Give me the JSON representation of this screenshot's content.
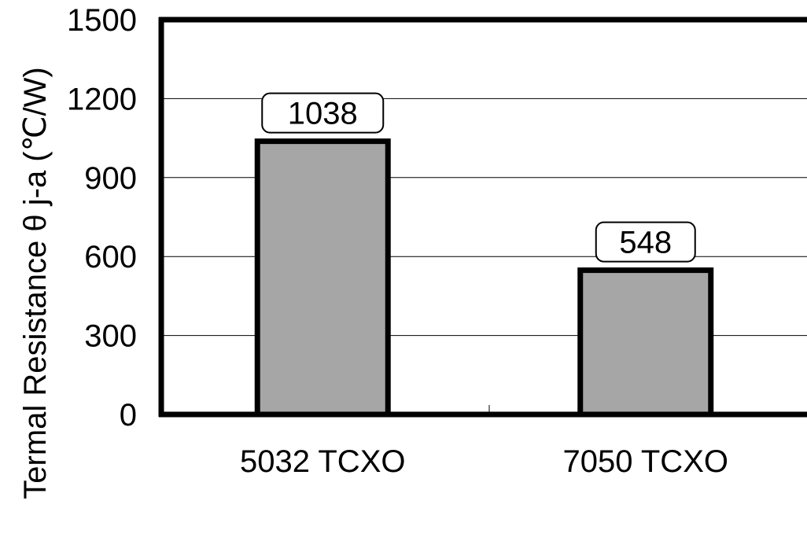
{
  "chart_data": {
    "type": "bar",
    "categories": [
      "5032 TCXO",
      "7050 TCXO"
    ],
    "values": [
      1038,
      548
    ],
    "data_labels": [
      "1038",
      "548"
    ],
    "title": "",
    "xlabel": "",
    "ylabel": "Termal Resistance   θ j-a (℃/W)",
    "ylim": [
      0,
      1500
    ],
    "yticks": [
      0,
      300,
      600,
      900,
      1200,
      1500
    ],
    "ytick_labels": [
      "0",
      "300",
      "600",
      "900",
      "1200",
      "1500"
    ],
    "grid": true,
    "legend": "none",
    "bar_color": "#a6a6a6",
    "bar_edge_color": "#000000"
  }
}
